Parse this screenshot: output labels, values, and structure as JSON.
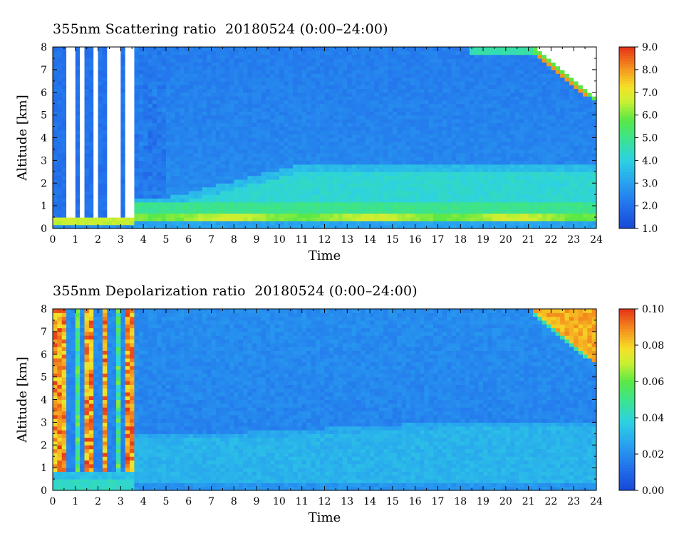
{
  "chart_data": [
    {
      "type": "heatmap",
      "title": "355nm Scattering ratio  20180524 (0:00–24:00)",
      "xlabel": "Time",
      "ylabel": "Altitude [km]",
      "xlim": [
        0,
        24
      ],
      "ylim": [
        0,
        8
      ],
      "x_ticks": [
        "0",
        "1",
        "2",
        "3",
        "4",
        "5",
        "6",
        "7",
        "8",
        "9",
        "10",
        "11",
        "12",
        "13",
        "14",
        "15",
        "16",
        "17",
        "18",
        "19",
        "20",
        "21",
        "22",
        "23",
        "24"
      ],
      "y_ticks": [
        "0",
        "1",
        "2",
        "3",
        "4",
        "5",
        "6",
        "7",
        "8"
      ],
      "colorbar": {
        "range": [
          1.0,
          9.0
        ],
        "ticks": [
          "1.0",
          "2.0",
          "3.0",
          "4.0",
          "5.0",
          "6.0",
          "7.0",
          "8.0",
          "9.0"
        ],
        "colormap": "rainbow (blue to red)"
      },
      "features": [
        {
          "desc": "saturated/white cloud columns",
          "time_range": [
            0.5,
            3.6
          ],
          "alt_range": [
            0.5,
            8
          ]
        },
        {
          "desc": "high scattering layer (yellow-orange)",
          "time_range": [
            5,
            24
          ],
          "alt_range": [
            0.4,
            0.7
          ]
        },
        {
          "desc": "aerosol layer (green-cyan)",
          "time_range": [
            5,
            24
          ],
          "alt_range": [
            0.7,
            2.7
          ]
        },
        {
          "desc": "high cirrus cloud (red/white)",
          "time_range": [
            21.3,
            24
          ],
          "alt_range": [
            5.6,
            8
          ]
        }
      ]
    },
    {
      "type": "heatmap",
      "title": "355nm Depolarization ratio  20180524 (0:00–24:00)",
      "xlabel": "Time",
      "ylabel": "Altitude [km]",
      "xlim": [
        0,
        24
      ],
      "ylim": [
        0,
        8
      ],
      "x_ticks": [
        "0",
        "1",
        "2",
        "3",
        "4",
        "5",
        "6",
        "7",
        "8",
        "9",
        "10",
        "11",
        "12",
        "13",
        "14",
        "15",
        "16",
        "17",
        "18",
        "19",
        "20",
        "21",
        "22",
        "23",
        "24"
      ],
      "y_ticks": [
        "0",
        "1",
        "2",
        "3",
        "4",
        "5",
        "6",
        "7",
        "8"
      ],
      "colorbar": {
        "range": [
          0.0,
          0.1
        ],
        "ticks": [
          "0.00",
          "0.02",
          "0.04",
          "0.06",
          "0.08",
          "0.10"
        ],
        "colormap": "rainbow (blue to red)"
      },
      "features": [
        {
          "desc": "noisy high depolarization columns",
          "time_range": [
            0,
            3.6
          ],
          "alt_range": [
            0.8,
            8
          ]
        },
        {
          "desc": "boundary layer (cyan)",
          "time_range": [
            3.6,
            24
          ],
          "alt_range": [
            0,
            2.8
          ]
        },
        {
          "desc": "high cirrus cloud (orange)",
          "time_range": [
            21.3,
            24
          ],
          "alt_range": [
            5.6,
            8
          ]
        }
      ]
    }
  ],
  "colors": {
    "dark_blue": "#1f63d6",
    "blue": "#2d8be8",
    "cyan": "#2fd4e0",
    "green": "#3fe46a",
    "yellow": "#f3f03a",
    "orange": "#f2a020",
    "red": "#e8401e",
    "white": "#ffffff"
  }
}
